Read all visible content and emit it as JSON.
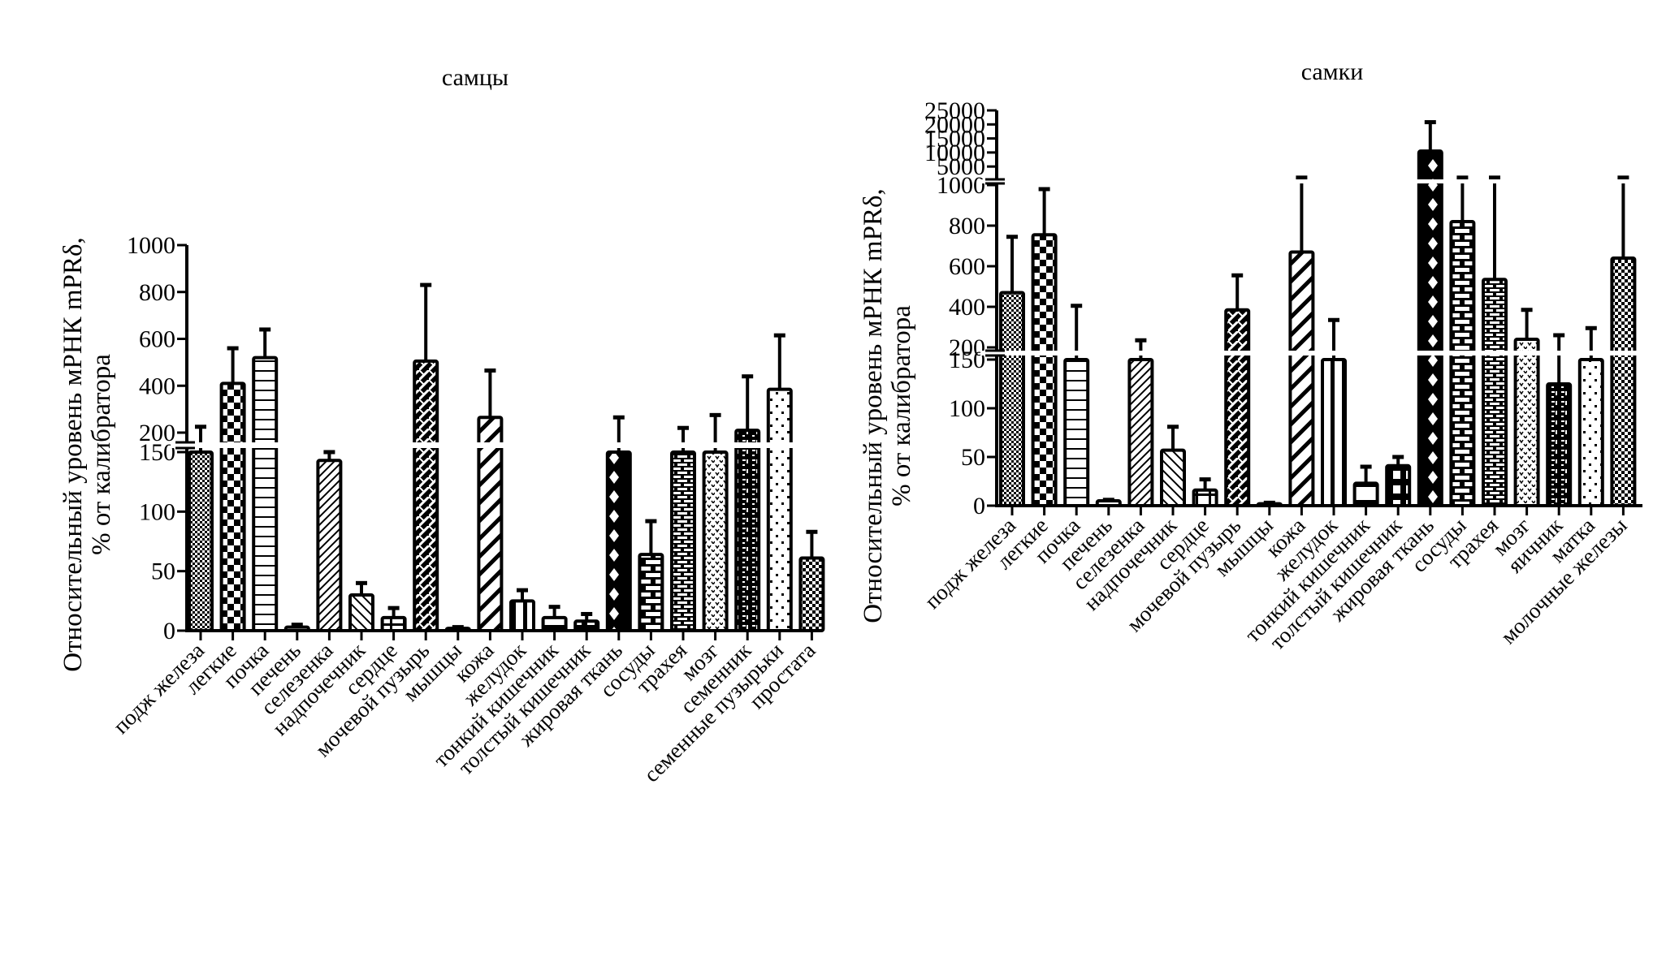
{
  "chart_data": [
    {
      "type": "bar",
      "title": "самцы",
      "ylabel_line1": "Относительный уровень мРНК mPRδ,",
      "ylabel_line2": "% от калибратора",
      "xlabel": "",
      "axis_break": {
        "lower_range": [
          0,
          150
        ],
        "upper_range": [
          200,
          1000
        ]
      },
      "yticks_lower": [
        0,
        50,
        100,
        150
      ],
      "yticks_upper": [
        200,
        400,
        600,
        800,
        1000
      ],
      "ytick_labels_lower": [
        "0",
        "50",
        "100",
        "150"
      ],
      "ytick_labels_upper": [
        "200",
        "400",
        "600",
        "800",
        "1000"
      ],
      "grid": false,
      "legend": "none",
      "categories": [
        "подж железа",
        "легкие",
        "почка",
        "печень",
        "селезенка",
        "надпочечник",
        "сердце",
        "мочевой пузырь",
        "мышцы",
        "кожа",
        "желудок",
        "тонкий кишечник",
        "толстый кишечник",
        "жировая ткань",
        "сосуды",
        "трахея",
        "мозг",
        "семенник",
        "семенные пузырьки",
        "простата"
      ],
      "values": [
        185,
        410,
        520,
        3,
        143,
        30,
        11,
        505,
        2,
        265,
        25,
        11,
        8,
        160,
        64,
        175,
        165,
        210,
        385,
        61
      ],
      "error_upper": [
        225,
        560,
        640,
        5,
        170,
        40,
        19,
        830,
        3,
        465,
        34,
        20,
        14,
        265,
        92,
        220,
        275,
        440,
        615,
        83
      ],
      "patterns": [
        "fine-check",
        "check",
        "hlines",
        "hlines",
        "diag-fine",
        "diag-back",
        "grid",
        "weave",
        "hlines",
        "diag-bold",
        "vlines",
        "hlines-bold",
        "grid-bold",
        "diamond",
        "brick",
        "brick-fine",
        "dots-v",
        "brick-dark",
        "dots",
        "check-fine"
      ]
    },
    {
      "type": "bar",
      "title": "самки",
      "ylabel_line1": "Относительный уровень мРНК mPRδ,",
      "ylabel_line2": "% от калибратора",
      "xlabel": "",
      "axis_break": {
        "lower_range": [
          0,
          150
        ],
        "middle_range": [
          200,
          1000
        ],
        "upper_range": [
          1000,
          25000
        ]
      },
      "yticks_lower": [
        0,
        50,
        100,
        150
      ],
      "yticks_middle": [
        200,
        400,
        600,
        800,
        1000
      ],
      "yticks_upper": [
        5000,
        10000,
        15000,
        20000,
        25000
      ],
      "ytick_labels_lower": [
        "0",
        "50",
        "100",
        "150"
      ],
      "ytick_labels_middle": [
        "200",
        "400",
        "600",
        "800",
        "1000"
      ],
      "ytick_labels_upper": [
        "5000",
        "10000",
        "15000",
        "20000",
        "25000"
      ],
      "grid": false,
      "legend": "none",
      "categories": [
        "подж железа",
        "легкие",
        "почка",
        "печень",
        "селезенка",
        "надпочечник",
        "сердце",
        "мочевой пузырь",
        "мышцы",
        "кожа",
        "желудок",
        "тонкий кишечник",
        "толстый кишечник",
        "жировая ткань",
        "сосуды",
        "трахея",
        "мозг",
        "яичник",
        "матка",
        "молочные железы"
      ],
      "values": [
        470,
        755,
        180,
        5,
        175,
        57,
        16,
        385,
        2,
        670,
        175,
        23,
        41,
        10500,
        820,
        535,
        240,
        125,
        185,
        640
      ],
      "error_upper": [
        745,
        980,
        405,
        6,
        235,
        81,
        27,
        555,
        3,
        1050,
        335,
        40,
        50,
        20800,
        1050,
        1050,
        385,
        260,
        295,
        1050
      ],
      "patterns": [
        "fine-check",
        "check",
        "hlines",
        "hlines",
        "diag-fine",
        "diag-back",
        "grid",
        "weave",
        "hlines",
        "diag-bold",
        "vlines",
        "hlines-bold",
        "grid-bold",
        "diamond",
        "brick",
        "brick-fine",
        "dots-v",
        "brick-dark",
        "dots",
        "check-fine"
      ]
    }
  ]
}
